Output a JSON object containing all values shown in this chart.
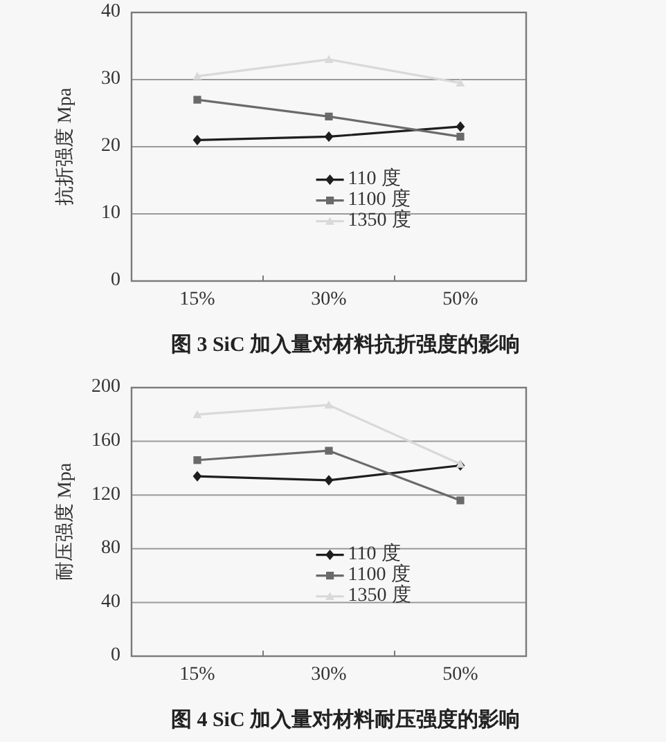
{
  "chart_data": [
    {
      "type": "line",
      "title": "图 3 SiC 加入量对材料抗折强度的影响",
      "ylabel": "抗折强度 Mpa",
      "categories": [
        "15%",
        "30%",
        "50%"
      ],
      "series": [
        {
          "name": "110 度",
          "color": "#1e1e1e",
          "marker": "diamond",
          "values": [
            21,
            21.5,
            23
          ]
        },
        {
          "name": "1100 度",
          "color": "#6a6a6a",
          "marker": "square",
          "values": [
            27,
            24.5,
            21.5
          ]
        },
        {
          "name": "1350 度",
          "color": "#d9d9d9",
          "marker": "triangle",
          "values": [
            30.5,
            33,
            29.5
          ]
        }
      ],
      "ylim": [
        0,
        40
      ],
      "yticks": [
        0,
        10,
        20,
        30,
        40
      ],
      "grid": "y",
      "legend": "center"
    },
    {
      "type": "line",
      "title": "图 4 SiC 加入量对材料耐压强度的影响",
      "ylabel": "耐压强度 Mpa",
      "categories": [
        "15%",
        "30%",
        "50%"
      ],
      "series": [
        {
          "name": "110 度",
          "color": "#1e1e1e",
          "marker": "diamond",
          "values": [
            134,
            131,
            142
          ]
        },
        {
          "name": "1100 度",
          "color": "#6a6a6a",
          "marker": "square",
          "values": [
            146,
            153,
            116
          ]
        },
        {
          "name": "1350 度",
          "color": "#d9d9d9",
          "marker": "triangle",
          "values": [
            180,
            187,
            143
          ]
        }
      ],
      "ylim": [
        0,
        200
      ],
      "yticks": [
        0,
        40,
        80,
        120,
        160,
        200
      ],
      "grid": "y",
      "legend": "center"
    }
  ]
}
